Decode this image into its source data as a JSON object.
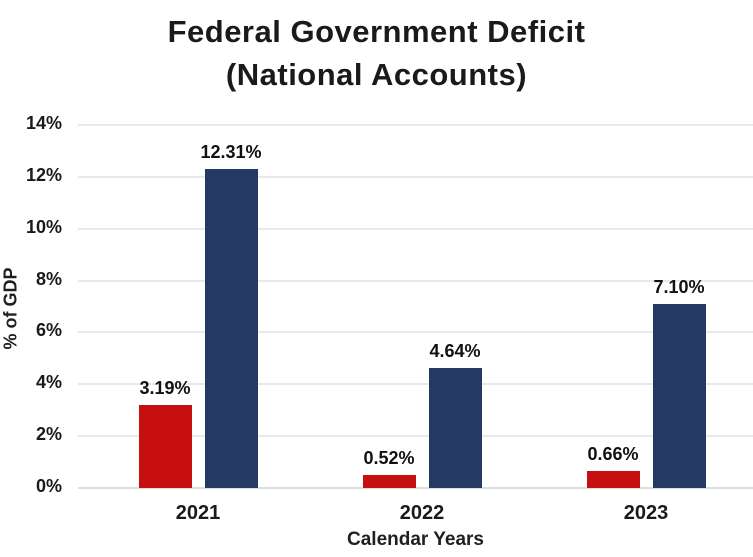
{
  "title": {
    "line1": "Federal Government Deficit",
    "line2": "(National Accounts)"
  },
  "chart_data": {
    "type": "bar",
    "title": "Federal Government Deficit (National Accounts)",
    "xlabel": "Calendar Years",
    "ylabel": "% of GDP",
    "categories": [
      "2021",
      "2022",
      "2023"
    ],
    "series": [
      {
        "name": "red-series",
        "color": "#c80f10",
        "values": [
          3.19,
          0.52,
          0.66
        ],
        "value_labels": [
          "3.19%",
          "0.52%",
          "0.66%"
        ]
      },
      {
        "name": "navy-series",
        "color": "#253a63",
        "values": [
          12.31,
          4.64,
          7.1
        ],
        "value_labels": [
          "12.31%",
          "4.64%",
          "7.10%"
        ]
      }
    ],
    "ylim": [
      0,
      14
    ],
    "ytick_step": 2,
    "ytick_labels": [
      "0%",
      "2%",
      "4%",
      "6%",
      "8%",
      "10%",
      "12%",
      "14%"
    ],
    "grid": true,
    "legend_position": "none"
  },
  "colors": {
    "background": "#ffffff",
    "gridline": "#e9e9e9",
    "text": "#1a1a1a",
    "bar_red": "#c80f10",
    "bar_navy": "#253a63"
  }
}
